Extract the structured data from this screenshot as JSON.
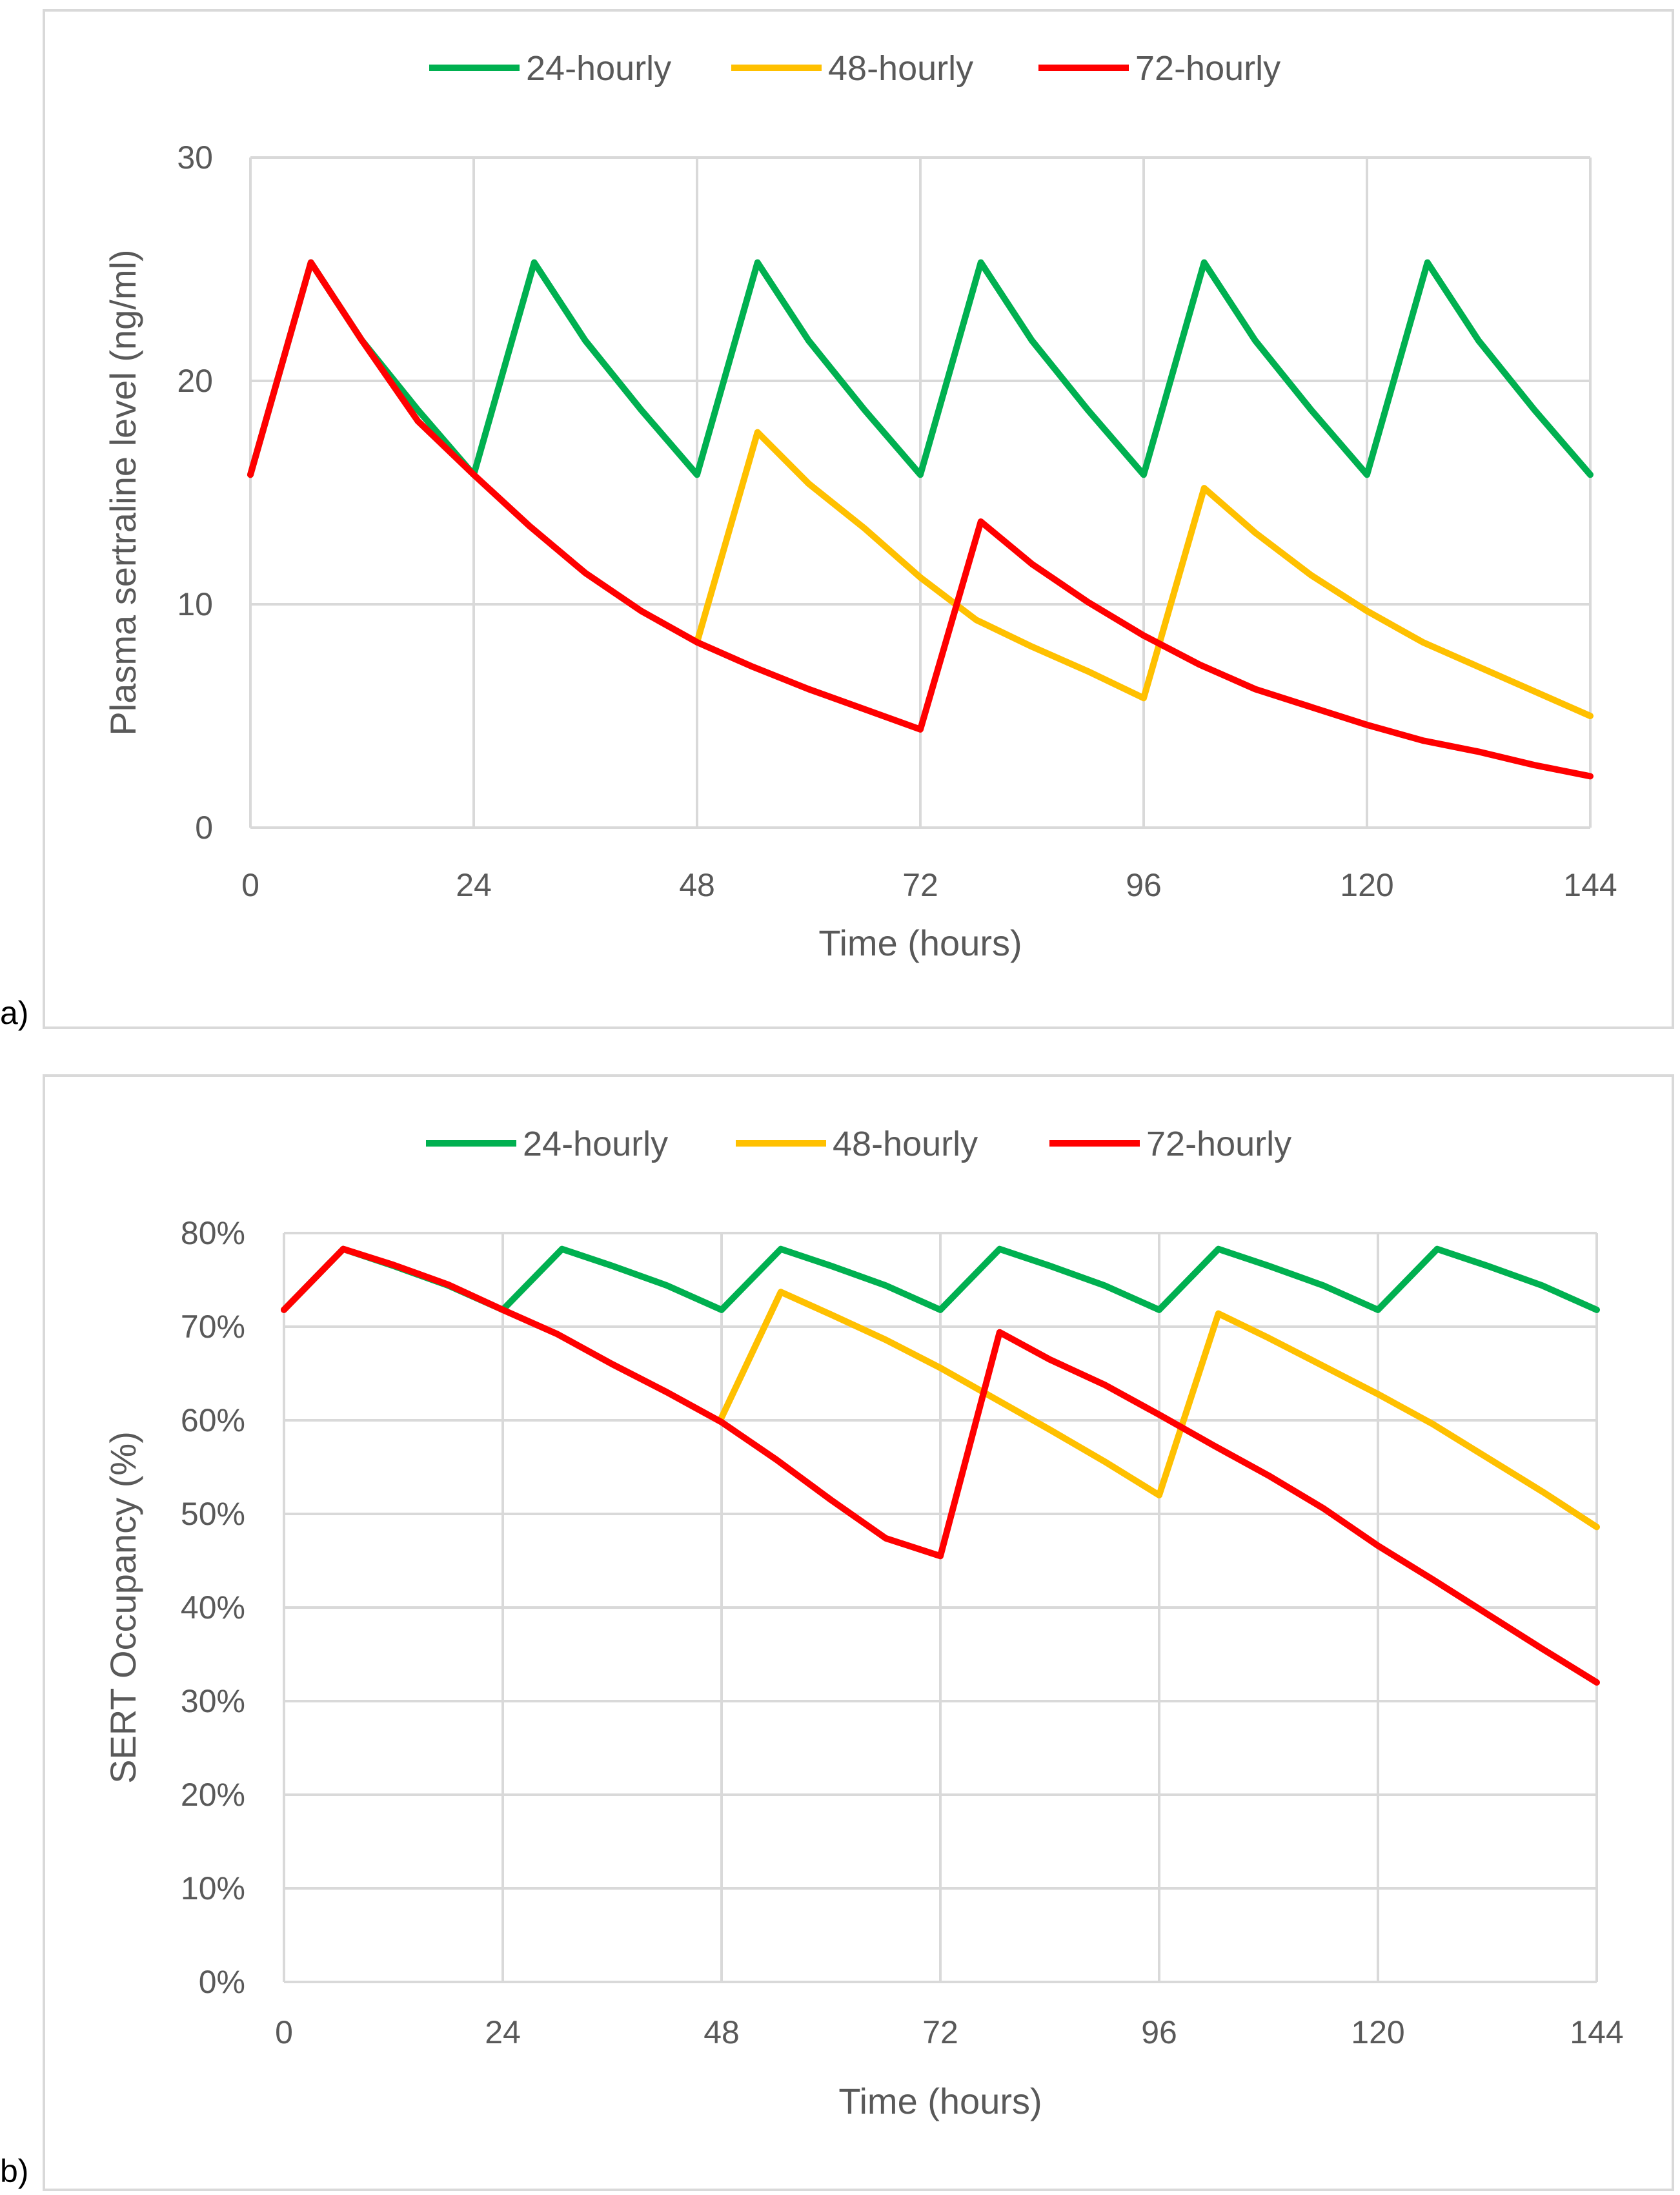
{
  "panel_labels": [
    "a)",
    "b)"
  ],
  "colors": {
    "24-hourly": "#00b050",
    "48-hourly": "#ffc000",
    "72-hourly": "#ff0000",
    "grid": "#d9d9d9",
    "text": "#595959"
  },
  "chart_data": [
    {
      "type": "line",
      "xlabel": "Time (hours)",
      "ylabel": "Plasma sertraline level (ng/ml)",
      "xlim": [
        0,
        144
      ],
      "ylim": [
        0,
        30
      ],
      "xticks": [
        0,
        24,
        48,
        72,
        96,
        120,
        144
      ],
      "yticks": [
        0,
        10,
        20,
        30
      ],
      "ytick_labels": [
        "0",
        "10",
        "20",
        "30"
      ],
      "grid": true,
      "legend_position": "top",
      "series": [
        {
          "name": "24-hourly",
          "x": [
            0,
            6.5,
            12,
            18,
            24,
            30.5,
            36,
            42,
            48,
            54.5,
            60,
            66,
            72,
            78.5,
            84,
            90,
            96,
            102.5,
            108,
            114,
            120,
            126.5,
            132,
            138,
            144
          ],
          "y": [
            15.8,
            25.3,
            21.8,
            18.7,
            15.8,
            25.3,
            21.8,
            18.7,
            15.8,
            25.3,
            21.8,
            18.7,
            15.8,
            25.3,
            21.8,
            18.7,
            15.8,
            25.3,
            21.8,
            18.7,
            15.8,
            25.3,
            21.8,
            18.7,
            15.8
          ]
        },
        {
          "name": "48-hourly",
          "x": [
            48,
            54.5,
            60,
            66,
            72,
            78,
            84,
            90,
            96,
            102.5,
            108,
            114,
            120,
            126,
            132,
            138,
            144
          ],
          "y": [
            8.3,
            17.7,
            15.4,
            13.4,
            11.2,
            9.3,
            8.1,
            7.0,
            5.8,
            15.2,
            13.2,
            11.3,
            9.7,
            8.3,
            7.2,
            6.1,
            5.0
          ]
        },
        {
          "name": "72-hourly",
          "x": [
            0,
            6.5,
            12,
            18,
            24,
            30,
            36,
            42,
            48,
            54,
            60,
            66,
            72,
            78.5,
            84,
            90,
            96,
            102,
            108,
            114,
            120,
            126,
            132,
            138,
            144
          ],
          "y": [
            15.8,
            25.3,
            21.8,
            18.2,
            15.8,
            13.5,
            11.4,
            9.7,
            8.3,
            7.2,
            6.2,
            5.3,
            4.4,
            13.7,
            11.8,
            10.1,
            8.6,
            7.3,
            6.2,
            5.4,
            4.6,
            3.9,
            3.4,
            2.8,
            2.3
          ]
        }
      ]
    },
    {
      "type": "line",
      "xlabel": "Time (hours)",
      "ylabel": "SERT Occupancy (%)",
      "xlim": [
        0,
        144
      ],
      "ylim": [
        0,
        80
      ],
      "xticks": [
        0,
        24,
        48,
        72,
        96,
        120,
        144
      ],
      "yticks": [
        0,
        10,
        20,
        30,
        40,
        50,
        60,
        70,
        80
      ],
      "ytick_labels": [
        "0%",
        "10%",
        "20%",
        "30%",
        "40%",
        "50%",
        "60%",
        "70%",
        "80%"
      ],
      "grid": true,
      "legend_position": "top",
      "series": [
        {
          "name": "24-hourly",
          "x": [
            0,
            6.5,
            12,
            18,
            24,
            30.5,
            36,
            42,
            48,
            54.5,
            60,
            66,
            72,
            78.5,
            84,
            90,
            96,
            102.5,
            108,
            114,
            120,
            126.5,
            132,
            138,
            144
          ],
          "y": [
            71.8,
            78.3,
            76.5,
            74.4,
            71.8,
            78.3,
            76.5,
            74.4,
            71.8,
            78.3,
            76.5,
            74.4,
            71.8,
            78.3,
            76.5,
            74.4,
            71.8,
            78.3,
            76.5,
            74.4,
            71.8,
            78.3,
            76.5,
            74.4,
            71.8
          ]
        },
        {
          "name": "48-hourly",
          "x": [
            48,
            54.5,
            60,
            66,
            72,
            78,
            84,
            90,
            96,
            102.5,
            108,
            114,
            120,
            126,
            132,
            138,
            144
          ],
          "y": [
            60.3,
            73.7,
            71.3,
            68.6,
            65.6,
            62.3,
            59.0,
            55.6,
            52.0,
            71.4,
            68.8,
            65.8,
            62.8,
            59.6,
            56.0,
            52.4,
            48.6
          ]
        },
        {
          "name": "72-hourly",
          "x": [
            0,
            6.5,
            12,
            18,
            24,
            30,
            36,
            42,
            48,
            54,
            60,
            66,
            72,
            78.5,
            84,
            90,
            96,
            102,
            108,
            114,
            120,
            126,
            132,
            138,
            144
          ],
          "y": [
            71.8,
            78.3,
            76.6,
            74.5,
            71.8,
            69.2,
            66.0,
            63.0,
            59.8,
            55.8,
            51.5,
            47.4,
            45.5,
            69.4,
            66.5,
            63.8,
            60.6,
            57.3,
            54.1,
            50.6,
            46.6,
            43.0,
            39.3,
            35.6,
            32.0
          ]
        }
      ]
    }
  ]
}
